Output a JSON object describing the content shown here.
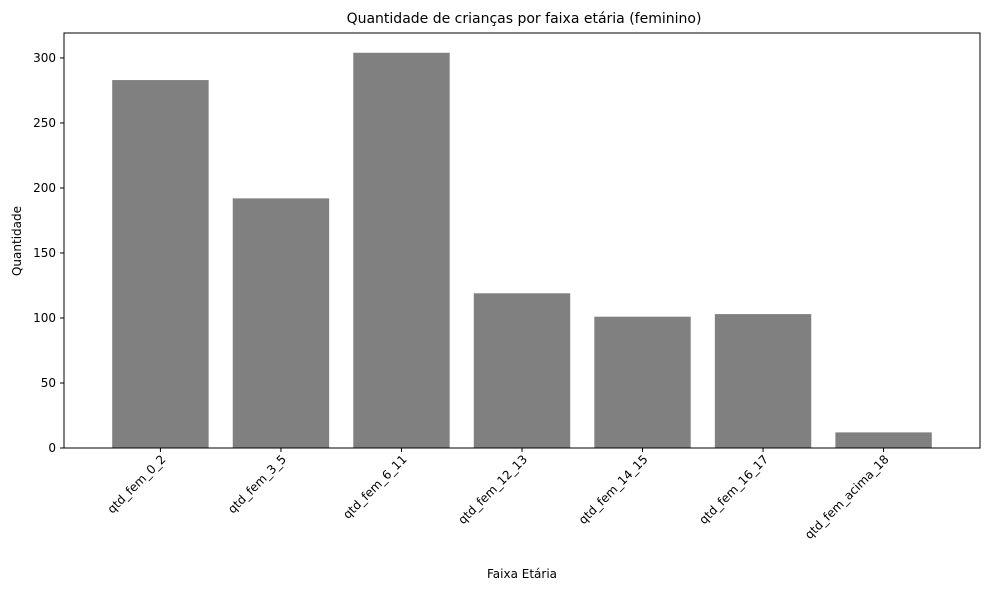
{
  "chart_data": {
    "type": "bar",
    "title": "Quantidade de crianças por faixa etária (feminino)",
    "xlabel": "Faixa Etária",
    "ylabel": "Quantidade",
    "categories": [
      "qtd_fem_0_2",
      "qtd_fem_3_5",
      "qtd_fem_6_11",
      "qtd_fem_12_13",
      "qtd_fem_14_15",
      "qtd_fem_16_17",
      "qtd_fem_acima_18"
    ],
    "values": [
      283,
      192,
      304,
      119,
      101,
      103,
      12
    ],
    "ylim": [
      0,
      319.2
    ],
    "yticks": [
      0,
      50,
      100,
      150,
      200,
      250,
      300
    ],
    "bar_color": "#808080",
    "grid": false,
    "legend": "none",
    "xtick_rotation_deg": 45
  }
}
